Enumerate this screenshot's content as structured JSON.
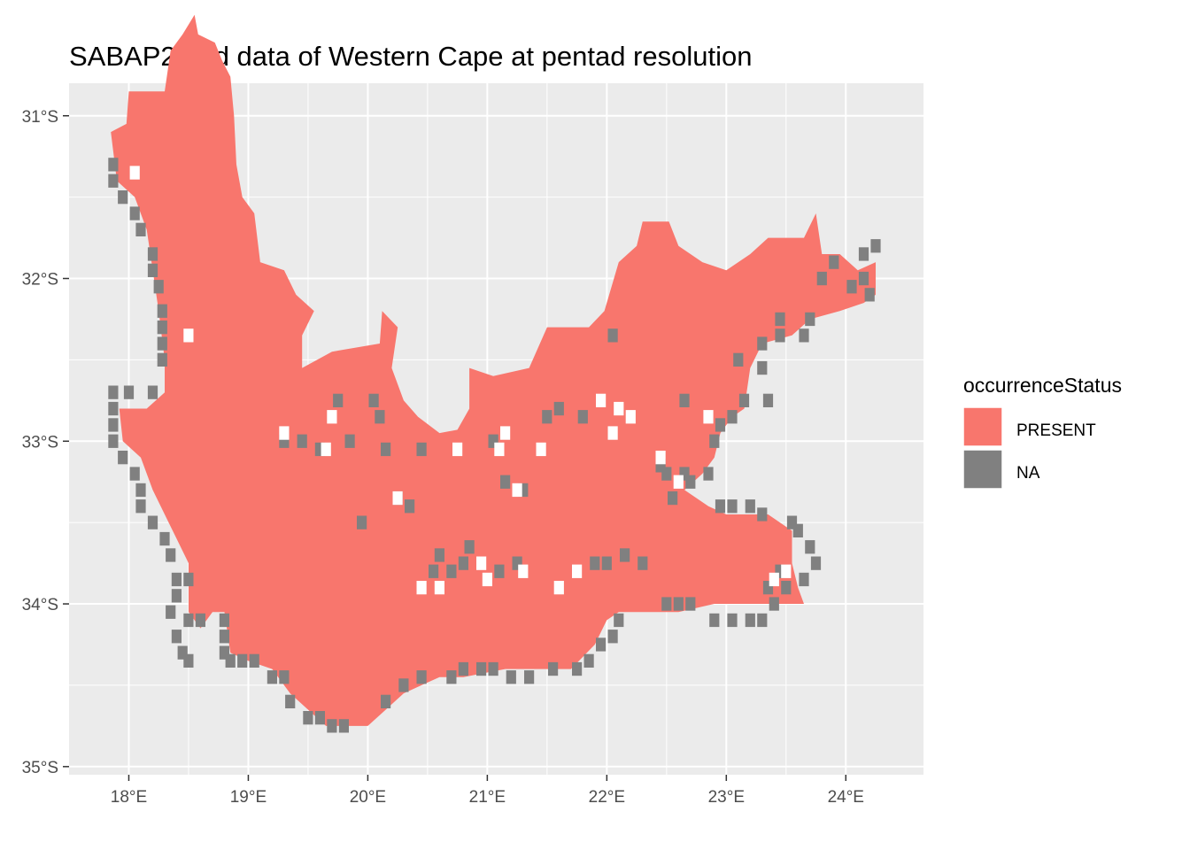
{
  "chart_data": {
    "type": "heatmap",
    "title": "SABAP2 bird data of Western Cape at pentad resolution",
    "xlabel": "",
    "ylabel": "",
    "xlim": [
      17.5,
      24.65
    ],
    "ylim": [
      -35.05,
      -30.8
    ],
    "x_ticks": [
      18,
      19,
      20,
      21,
      22,
      23,
      24
    ],
    "y_ticks": [
      -31,
      -32,
      -33,
      -34,
      -35
    ],
    "x_tick_labels": [
      "18°E",
      "19°E",
      "20°E",
      "21°E",
      "22°E",
      "23°E",
      "24°E"
    ],
    "y_tick_labels": [
      "31°S",
      "32°S",
      "33°S",
      "34°S",
      "35°S"
    ],
    "cell_size_deg": 0.0833,
    "grid": true,
    "legend": {
      "title": "occurrenceStatus",
      "position": "right",
      "entries": [
        {
          "label": "PRESENT",
          "color": "#F8766D"
        },
        {
          "label": "NA",
          "color": "#808080"
        }
      ]
    },
    "regions_present": [
      [
        18.55,
        -30.38
      ],
      [
        18.58,
        -30.5
      ],
      [
        18.72,
        -30.55
      ],
      [
        18.78,
        -30.66
      ],
      [
        18.85,
        -30.76
      ],
      [
        18.88,
        -31.0
      ],
      [
        18.9,
        -31.3
      ],
      [
        18.95,
        -31.5
      ],
      [
        19.05,
        -31.6
      ],
      [
        19.1,
        -31.9
      ],
      [
        19.3,
        -31.95
      ],
      [
        19.4,
        -32.1
      ],
      [
        19.55,
        -32.2
      ],
      [
        19.45,
        -32.35
      ],
      [
        19.45,
        -32.55
      ],
      [
        19.7,
        -32.45
      ],
      [
        20.1,
        -32.4
      ],
      [
        20.12,
        -32.2
      ],
      [
        20.25,
        -32.3
      ],
      [
        20.2,
        -32.55
      ],
      [
        20.3,
        -32.75
      ],
      [
        20.42,
        -32.85
      ],
      [
        20.6,
        -32.95
      ],
      [
        20.75,
        -32.93
      ],
      [
        20.85,
        -32.8
      ],
      [
        20.85,
        -32.55
      ],
      [
        21.05,
        -32.6
      ],
      [
        21.35,
        -32.55
      ],
      [
        21.5,
        -32.3
      ],
      [
        21.85,
        -32.3
      ],
      [
        21.98,
        -32.2
      ],
      [
        22.1,
        -31.9
      ],
      [
        22.25,
        -31.8
      ],
      [
        22.3,
        -31.65
      ],
      [
        22.52,
        -31.65
      ],
      [
        22.6,
        -31.8
      ],
      [
        22.8,
        -31.9
      ],
      [
        23.0,
        -31.95
      ],
      [
        23.2,
        -31.85
      ],
      [
        23.35,
        -31.75
      ],
      [
        23.65,
        -31.75
      ],
      [
        23.75,
        -31.6
      ],
      [
        23.8,
        -31.85
      ],
      [
        23.95,
        -31.85
      ],
      [
        24.1,
        -31.95
      ],
      [
        24.25,
        -31.9
      ],
      [
        24.25,
        -32.1
      ],
      [
        24.15,
        -32.15
      ],
      [
        23.95,
        -32.2
      ],
      [
        23.7,
        -32.25
      ],
      [
        23.55,
        -32.35
      ],
      [
        23.3,
        -32.4
      ],
      [
        23.2,
        -32.55
      ],
      [
        23.15,
        -32.8
      ],
      [
        23.05,
        -32.85
      ],
      [
        22.95,
        -32.95
      ],
      [
        22.9,
        -33.1
      ],
      [
        22.8,
        -33.2
      ],
      [
        22.65,
        -33.3
      ],
      [
        22.85,
        -33.4
      ],
      [
        23.0,
        -33.45
      ],
      [
        23.35,
        -33.45
      ],
      [
        23.55,
        -33.55
      ],
      [
        23.55,
        -33.75
      ],
      [
        23.6,
        -33.9
      ],
      [
        23.65,
        -34.0
      ],
      [
        23.45,
        -34.0
      ],
      [
        23.2,
        -34.0
      ],
      [
        22.9,
        -34.0
      ],
      [
        22.6,
        -34.05
      ],
      [
        22.3,
        -34.05
      ],
      [
        22.1,
        -34.05
      ],
      [
        22.0,
        -34.1
      ],
      [
        21.9,
        -34.25
      ],
      [
        21.7,
        -34.4
      ],
      [
        21.4,
        -34.4
      ],
      [
        21.15,
        -34.4
      ],
      [
        20.8,
        -34.45
      ],
      [
        20.6,
        -34.45
      ],
      [
        20.45,
        -34.5
      ],
      [
        20.3,
        -34.55
      ],
      [
        20.15,
        -34.65
      ],
      [
        20.0,
        -34.75
      ],
      [
        19.85,
        -34.75
      ],
      [
        19.65,
        -34.75
      ],
      [
        19.5,
        -34.65
      ],
      [
        19.35,
        -34.55
      ],
      [
        19.2,
        -34.4
      ],
      [
        19.0,
        -34.35
      ],
      [
        18.85,
        -34.3
      ],
      [
        18.8,
        -34.05
      ],
      [
        18.7,
        -34.05
      ],
      [
        18.6,
        -34.15
      ],
      [
        18.5,
        -34.05
      ],
      [
        18.5,
        -33.75
      ],
      [
        18.4,
        -33.6
      ],
      [
        18.3,
        -33.45
      ],
      [
        18.2,
        -33.3
      ],
      [
        18.1,
        -33.1
      ],
      [
        17.95,
        -33.0
      ],
      [
        17.92,
        -32.8
      ],
      [
        18.15,
        -32.8
      ],
      [
        18.3,
        -32.7
      ],
      [
        18.3,
        -32.5
      ],
      [
        18.25,
        -32.2
      ],
      [
        18.2,
        -31.95
      ],
      [
        18.15,
        -31.7
      ],
      [
        18.05,
        -31.5
      ],
      [
        17.9,
        -31.4
      ],
      [
        17.85,
        -31.1
      ],
      [
        17.98,
        -31.05
      ],
      [
        18.0,
        -30.85
      ],
      [
        18.3,
        -30.85
      ],
      [
        18.35,
        -30.6
      ],
      [
        18.45,
        -30.5
      ]
    ],
    "na_cells": [
      [
        17.87,
        -31.3
      ],
      [
        17.87,
        -31.4
      ],
      [
        17.95,
        -31.5
      ],
      [
        18.05,
        -31.6
      ],
      [
        18.1,
        -31.7
      ],
      [
        18.2,
        -31.85
      ],
      [
        18.2,
        -31.95
      ],
      [
        18.25,
        -32.05
      ],
      [
        18.28,
        -32.2
      ],
      [
        18.28,
        -32.3
      ],
      [
        18.28,
        -32.4
      ],
      [
        18.28,
        -32.5
      ],
      [
        18.2,
        -32.7
      ],
      [
        17.87,
        -32.7
      ],
      [
        18.0,
        -32.7
      ],
      [
        17.87,
        -32.8
      ],
      [
        17.87,
        -32.9
      ],
      [
        17.87,
        -33.0
      ],
      [
        17.95,
        -33.1
      ],
      [
        18.05,
        -33.2
      ],
      [
        18.1,
        -33.3
      ],
      [
        18.1,
        -33.4
      ],
      [
        18.2,
        -33.5
      ],
      [
        18.3,
        -33.6
      ],
      [
        18.35,
        -33.7
      ],
      [
        18.4,
        -33.85
      ],
      [
        18.4,
        -33.95
      ],
      [
        18.5,
        -33.85
      ],
      [
        18.35,
        -34.05
      ],
      [
        18.5,
        -34.1
      ],
      [
        18.6,
        -34.1
      ],
      [
        18.4,
        -34.2
      ],
      [
        18.45,
        -34.3
      ],
      [
        18.5,
        -34.35
      ],
      [
        18.8,
        -34.1
      ],
      [
        18.8,
        -34.2
      ],
      [
        18.8,
        -34.3
      ],
      [
        18.85,
        -34.35
      ],
      [
        18.95,
        -34.35
      ],
      [
        19.05,
        -34.35
      ],
      [
        19.2,
        -34.45
      ],
      [
        19.3,
        -34.45
      ],
      [
        19.35,
        -34.6
      ],
      [
        19.5,
        -34.7
      ],
      [
        19.6,
        -34.7
      ],
      [
        19.7,
        -34.75
      ],
      [
        19.8,
        -34.75
      ],
      [
        20.15,
        -34.6
      ],
      [
        20.3,
        -34.5
      ],
      [
        20.45,
        -34.45
      ],
      [
        20.7,
        -34.45
      ],
      [
        20.8,
        -34.4
      ],
      [
        20.95,
        -34.4
      ],
      [
        21.05,
        -34.4
      ],
      [
        21.2,
        -34.45
      ],
      [
        21.35,
        -34.45
      ],
      [
        21.55,
        -34.4
      ],
      [
        21.75,
        -34.4
      ],
      [
        21.85,
        -34.35
      ],
      [
        21.95,
        -34.25
      ],
      [
        22.05,
        -34.2
      ],
      [
        22.1,
        -34.1
      ],
      [
        22.5,
        -34.0
      ],
      [
        22.6,
        -34.0
      ],
      [
        22.7,
        -34.0
      ],
      [
        22.9,
        -34.1
      ],
      [
        23.05,
        -34.1
      ],
      [
        23.2,
        -34.1
      ],
      [
        23.3,
        -34.1
      ],
      [
        23.4,
        -34.0
      ],
      [
        23.65,
        -33.85
      ],
      [
        23.7,
        -33.65
      ],
      [
        23.75,
        -33.75
      ],
      [
        23.6,
        -33.55
      ],
      [
        23.55,
        -33.5
      ],
      [
        23.45,
        -33.8
      ],
      [
        23.35,
        -33.9
      ],
      [
        23.5,
        -33.9
      ],
      [
        23.3,
        -33.45
      ],
      [
        23.2,
        -33.4
      ],
      [
        23.05,
        -33.4
      ],
      [
        22.95,
        -33.4
      ],
      [
        22.7,
        -33.25
      ],
      [
        22.55,
        -33.35
      ],
      [
        22.5,
        -33.2
      ],
      [
        22.65,
        -33.2
      ],
      [
        22.85,
        -33.2
      ],
      [
        22.9,
        -33.0
      ],
      [
        22.95,
        -32.9
      ],
      [
        23.05,
        -32.85
      ],
      [
        23.15,
        -32.75
      ],
      [
        23.35,
        -32.75
      ],
      [
        23.3,
        -32.55
      ],
      [
        23.3,
        -32.4
      ],
      [
        23.45,
        -32.35
      ],
      [
        23.65,
        -32.35
      ],
      [
        23.7,
        -32.25
      ],
      [
        23.8,
        -32.0
      ],
      [
        23.9,
        -31.9
      ],
      [
        24.05,
        -32.05
      ],
      [
        24.15,
        -32.0
      ],
      [
        24.25,
        -31.8
      ],
      [
        24.15,
        -31.85
      ],
      [
        24.2,
        -32.1
      ],
      [
        21.9,
        -33.75
      ],
      [
        22.0,
        -33.75
      ],
      [
        22.15,
        -33.7
      ],
      [
        22.3,
        -33.75
      ],
      [
        20.85,
        -33.65
      ],
      [
        20.8,
        -33.75
      ],
      [
        21.1,
        -33.8
      ],
      [
        20.6,
        -33.7
      ],
      [
        20.55,
        -33.8
      ],
      [
        20.7,
        -33.8
      ],
      [
        21.25,
        -33.75
      ],
      [
        20.35,
        -33.4
      ],
      [
        20.25,
        -33.35
      ],
      [
        20.45,
        -33.05
      ],
      [
        20.1,
        -32.85
      ],
      [
        19.45,
        -33.0
      ],
      [
        19.6,
        -33.05
      ],
      [
        19.75,
        -32.75
      ],
      [
        20.05,
        -32.75
      ],
      [
        21.15,
        -33.25
      ],
      [
        22.05,
        -32.35
      ],
      [
        23.1,
        -32.5
      ],
      [
        23.45,
        -32.25
      ],
      [
        22.65,
        -32.75
      ],
      [
        21.05,
        -33.0
      ],
      [
        21.5,
        -32.85
      ],
      [
        21.8,
        -32.85
      ],
      [
        21.6,
        -32.8
      ],
      [
        22.45,
        -33.15
      ],
      [
        21.3,
        -33.3
      ],
      [
        19.95,
        -33.5
      ],
      [
        20.15,
        -33.05
      ],
      [
        19.85,
        -33.0
      ],
      [
        19.3,
        -33.0
      ]
    ],
    "white_holes": [
      [
        18.05,
        -31.35
      ],
      [
        18.5,
        -32.35
      ],
      [
        19.65,
        -33.05
      ],
      [
        21.95,
        -32.75
      ],
      [
        22.1,
        -32.8
      ],
      [
        22.05,
        -32.95
      ],
      [
        20.95,
        -33.75
      ],
      [
        21.0,
        -33.85
      ],
      [
        20.45,
        -33.9
      ],
      [
        20.6,
        -33.9
      ],
      [
        21.3,
        -33.8
      ],
      [
        21.6,
        -33.9
      ],
      [
        21.75,
        -33.8
      ],
      [
        20.25,
        -33.35
      ],
      [
        21.25,
        -33.3
      ],
      [
        21.45,
        -33.05
      ],
      [
        22.45,
        -33.1
      ],
      [
        22.6,
        -33.25
      ],
      [
        23.4,
        -33.85
      ],
      [
        23.5,
        -33.8
      ],
      [
        19.3,
        -32.95
      ],
      [
        19.7,
        -32.85
      ],
      [
        20.75,
        -33.05
      ],
      [
        21.1,
        -33.05
      ],
      [
        21.15,
        -32.95
      ],
      [
        22.2,
        -32.85
      ],
      [
        22.85,
        -32.85
      ]
    ]
  }
}
